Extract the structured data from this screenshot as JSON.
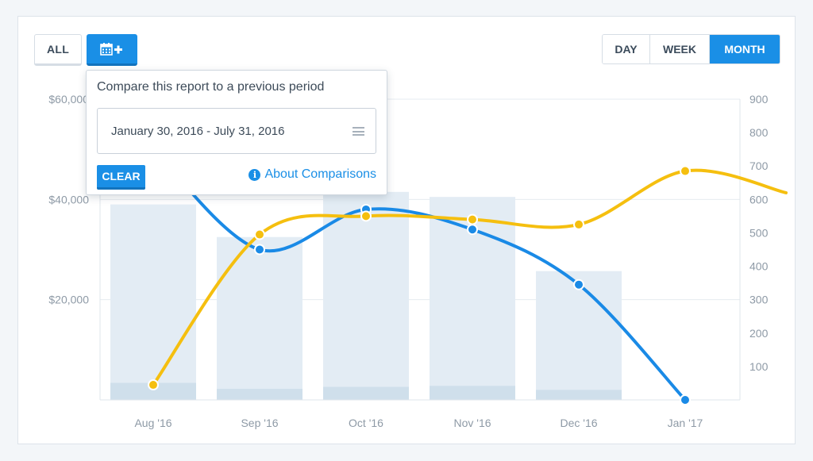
{
  "controls": {
    "all_label": "ALL",
    "period_buttons": [
      {
        "label": "DAY",
        "active": false
      },
      {
        "label": "WEEK",
        "active": false
      },
      {
        "label": "MONTH",
        "active": true
      }
    ]
  },
  "compare_popover": {
    "title": "Compare this report to a previous period",
    "date_range": "January 30, 2016 - July 31, 2016",
    "clear_label": "CLEAR",
    "about_label": "About Comparisons"
  },
  "colors": {
    "accent": "#1a8fe6",
    "blue_series": "#1a8ae6",
    "yellow_series": "#f5bf0f",
    "bar_fill": "#e3ecf4",
    "compare_bar_fill": "#cfdfeb"
  },
  "icons": {
    "calendar_add": "calendar-plus-icon",
    "menu": "hamburger-icon",
    "info": "info-circle-icon"
  },
  "chart_data": {
    "type": "bar+line",
    "categories": [
      "Aug '16",
      "Sep '16",
      "Oct '16",
      "Nov '16",
      "Dec '16",
      "Jan '17"
    ],
    "y_left": {
      "ticks": [
        20000,
        40000,
        60000
      ],
      "tick_labels": [
        "$20,000",
        "$40,000",
        "$60,000"
      ],
      "range": [
        0,
        60000
      ]
    },
    "y_right": {
      "ticks": [
        100,
        200,
        300,
        400,
        500,
        600,
        700,
        800,
        900
      ],
      "tick_labels": [
        "100",
        "200",
        "300",
        "400",
        "500",
        "600",
        "700",
        "800",
        "900"
      ],
      "range": [
        0,
        900
      ]
    },
    "bars": {
      "axis": "left",
      "values": [
        39000,
        32500,
        41500,
        40500,
        25700,
        null
      ],
      "comparison_values": [
        3400,
        2200,
        2600,
        2800,
        2000,
        null
      ]
    },
    "series": [
      {
        "color": "blue",
        "axis": "right",
        "values": [
          750,
          450,
          570,
          510,
          345,
          0
        ]
      },
      {
        "color": "yellow",
        "axis": "right",
        "values": [
          45,
          495,
          550,
          540,
          525,
          685
        ],
        "trailing_value": 620
      }
    ],
    "grid": true,
    "legend": "none"
  }
}
